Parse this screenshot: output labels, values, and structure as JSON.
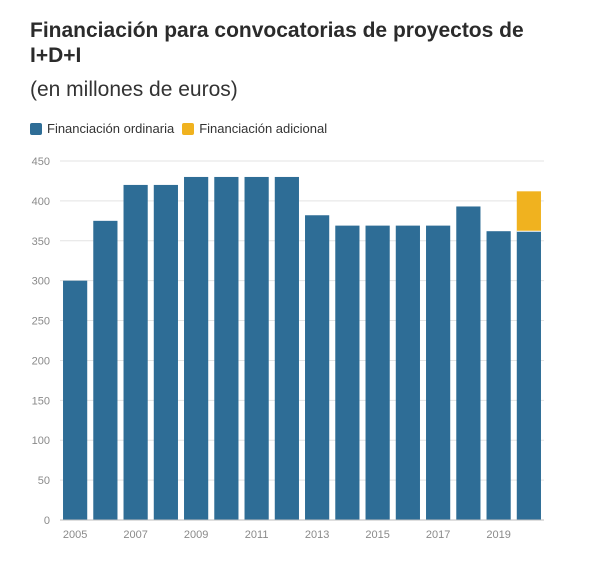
{
  "chart_data": {
    "type": "bar",
    "title": "Financiación para convocatorias de proyectos de I+D+I",
    "subtitle": "(en millones de euros)",
    "categories": [
      "2005",
      "2006",
      "2007",
      "2008",
      "2009",
      "2010",
      "2011",
      "2012",
      "2013",
      "2014",
      "2015",
      "2016",
      "2017",
      "2018",
      "2019",
      "2020"
    ],
    "x_tick_labels": [
      "2005",
      "2007",
      "2009",
      "2011",
      "2013",
      "2015",
      "2017",
      "2019"
    ],
    "series": [
      {
        "name": "Financiación ordinaria",
        "color": "#2e6d96",
        "values": [
          300,
          375,
          420,
          420,
          430,
          430,
          430,
          430,
          382,
          369,
          369,
          369,
          369,
          393,
          362,
          362
        ]
      },
      {
        "name": "Financiación adicional",
        "color": "#f0b21f",
        "values": [
          0,
          0,
          0,
          0,
          0,
          0,
          0,
          0,
          0,
          0,
          0,
          0,
          0,
          0,
          0,
          50
        ]
      }
    ],
    "stacked": true,
    "ylim": [
      0,
      450
    ],
    "y_ticks": [
      0,
      50,
      100,
      150,
      200,
      250,
      300,
      350,
      400,
      450
    ],
    "grid": true,
    "legend_position": "top-left"
  }
}
